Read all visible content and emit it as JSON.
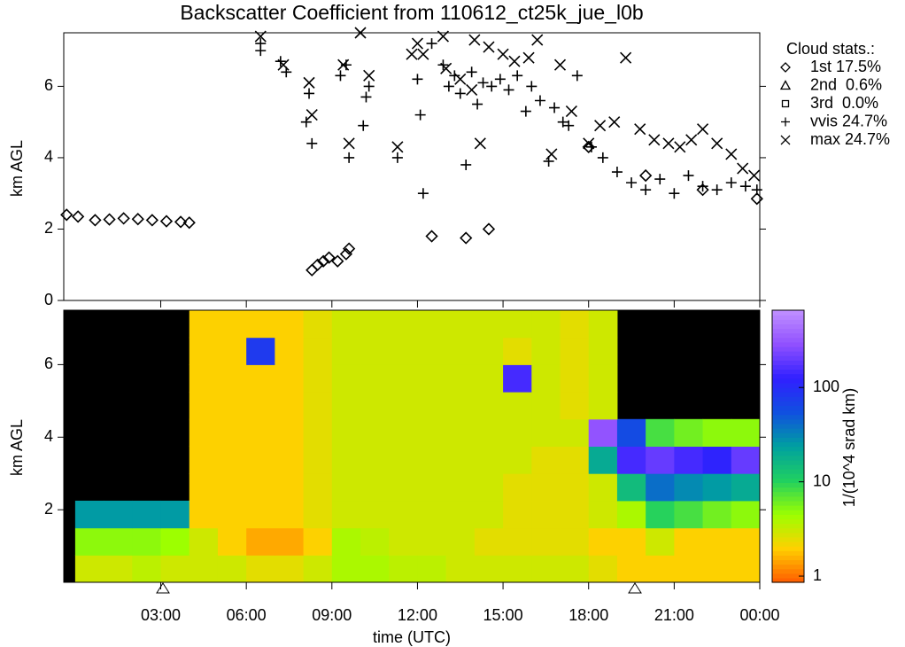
{
  "chart_data": [
    {
      "type": "scatter",
      "title": "Backscatter Coefficient from 110612_ct25k_jue_l0b",
      "ylabel": "km AGL",
      "xlim": [
        -0.4,
        24
      ],
      "ylim": [
        0,
        7.5
      ],
      "yticks": [
        0,
        2,
        4,
        6
      ],
      "legend_title": "Cloud stats.:",
      "series": [
        {
          "name": "1st 17.5%",
          "marker": "diamond",
          "color": "#000000",
          "x": [
            -0.3,
            0.1,
            0.7,
            1.2,
            1.7,
            2.2,
            2.7,
            3.2,
            3.7,
            4.0,
            8.3,
            8.5,
            8.7,
            8.9,
            9.2,
            9.5,
            9.6,
            12.5,
            13.7,
            14.5,
            18.0,
            20.0,
            22.0,
            23.9
          ],
          "values": [
            2.4,
            2.35,
            2.25,
            2.27,
            2.3,
            2.28,
            2.25,
            2.22,
            2.2,
            2.18,
            0.85,
            1.0,
            1.1,
            1.2,
            1.1,
            1.3,
            1.45,
            1.8,
            1.75,
            2.0,
            4.3,
            3.5,
            3.1,
            2.85
          ]
        },
        {
          "name": "2nd  0.6%",
          "marker": "triangle",
          "color": "#000000",
          "x": [],
          "values": []
        },
        {
          "name": "3rd  0.0%",
          "marker": "square",
          "color": "#000000",
          "x": [],
          "values": []
        },
        {
          "name": "vvis 24.7%",
          "marker": "plus",
          "color": "#000000",
          "x": [
            6.5,
            6.5,
            7.2,
            7.4,
            8.2,
            8.3,
            8.1,
            9.3,
            9.5,
            9.6,
            10.1,
            10.2,
            10.3,
            11.3,
            12.0,
            12.1,
            12.2,
            12.5,
            12.9,
            13.1,
            13.3,
            13.5,
            13.7,
            13.9,
            14.1,
            14.3,
            14.6,
            14.9,
            15.2,
            15.5,
            15.8,
            16.0,
            16.3,
            16.6,
            16.8,
            17.1,
            17.3,
            17.6,
            18.1,
            18.5,
            19.0,
            19.5,
            20.0,
            20.5,
            21.0,
            21.5,
            22.0,
            22.5,
            23.0,
            23.5,
            23.9
          ],
          "values": [
            7.0,
            7.2,
            6.7,
            6.4,
            5.8,
            4.4,
            5.0,
            6.3,
            6.6,
            4.0,
            4.9,
            5.7,
            6.0,
            4.0,
            6.2,
            5.2,
            3.0,
            7.2,
            6.6,
            6.0,
            6.3,
            5.8,
            3.8,
            6.4,
            5.5,
            6.1,
            6.0,
            6.2,
            5.9,
            6.3,
            5.3,
            6.0,
            5.6,
            3.9,
            5.4,
            5.0,
            4.9,
            6.3,
            4.3,
            4.0,
            3.6,
            3.3,
            3.1,
            3.4,
            3.0,
            3.5,
            3.2,
            3.1,
            3.3,
            3.2,
            3.1
          ]
        },
        {
          "name": "max 24.7%",
          "marker": "cross",
          "color": "#000000",
          "x": [
            6.5,
            7.3,
            8.2,
            8.3,
            9.4,
            9.6,
            10.0,
            10.3,
            11.3,
            11.8,
            12.0,
            12.2,
            12.9,
            13.0,
            13.5,
            13.9,
            14.0,
            14.2,
            14.5,
            15.0,
            15.4,
            15.9,
            16.2,
            16.7,
            17.0,
            17.4,
            18.0,
            18.4,
            18.9,
            19.3,
            19.8,
            20.3,
            20.8,
            21.2,
            21.6,
            22.0,
            22.5,
            23.0,
            23.4,
            23.8
          ],
          "values": [
            7.4,
            6.6,
            6.1,
            5.2,
            6.6,
            4.4,
            7.5,
            6.3,
            4.3,
            6.9,
            7.2,
            6.9,
            7.4,
            6.5,
            6.2,
            5.9,
            7.3,
            4.4,
            7.1,
            6.9,
            6.7,
            6.8,
            7.3,
            4.1,
            6.6,
            5.3,
            4.4,
            4.9,
            5.0,
            6.8,
            4.8,
            4.5,
            4.4,
            4.3,
            4.5,
            4.8,
            4.4,
            4.1,
            3.7,
            3.5
          ]
        }
      ]
    },
    {
      "type": "heatmap",
      "xlabel": "time (UTC)",
      "ylabel": "km AGL",
      "xlim": [
        -0.4,
        24
      ],
      "ylim": [
        0,
        7.5
      ],
      "yticks": [
        2,
        4,
        6
      ],
      "xticks": [
        {
          "value": 3,
          "label": "03:00"
        },
        {
          "value": 6,
          "label": "06:00"
        },
        {
          "value": 9,
          "label": "09:00"
        },
        {
          "value": 12,
          "label": "12:00"
        },
        {
          "value": 15,
          "label": "15:00"
        },
        {
          "value": 18,
          "label": "18:00"
        },
        {
          "value": 21,
          "label": "21:00"
        },
        {
          "value": 24,
          "label": "00:00"
        }
      ],
      "x_bins": [
        0,
        1,
        2,
        3,
        4,
        5,
        6,
        7,
        8,
        9,
        10,
        11,
        12,
        13,
        14,
        15,
        16,
        17,
        18,
        19,
        20,
        21,
        22,
        23,
        24
      ],
      "y_bins": [
        0,
        0.75,
        1.5,
        2.25,
        3,
        3.75,
        4.5,
        5.25,
        6,
        6.75,
        7.5
      ],
      "values": [
        [
          3,
          3,
          3.5,
          3,
          3,
          3,
          2.5,
          2.5,
          3,
          4,
          4,
          3.5,
          3.5,
          3,
          3,
          3,
          3,
          3,
          2.5,
          2,
          2,
          2,
          2,
          2
        ],
        [
          5,
          5,
          5,
          4.5,
          3,
          2,
          1.5,
          1.5,
          2,
          4,
          3.5,
          3,
          3,
          3,
          2.5,
          2.5,
          2.5,
          2.5,
          2,
          2,
          3,
          2,
          2,
          2
        ],
        [
          25,
          25,
          25,
          25,
          2,
          2,
          2,
          2,
          2.5,
          3,
          3,
          3,
          3,
          3,
          3,
          2.5,
          2.5,
          2.5,
          3,
          4,
          10,
          8,
          6,
          5
        ],
        [
          null,
          null,
          null,
          null,
          2,
          2,
          2,
          2,
          2.5,
          3,
          3,
          3,
          3,
          3,
          3,
          2.5,
          2.5,
          2.5,
          3,
          15,
          40,
          30,
          25,
          20
        ],
        [
          null,
          null,
          null,
          null,
          2,
          2,
          2,
          2,
          2.5,
          3,
          3,
          3,
          3,
          3,
          3,
          3,
          2.5,
          2.5,
          20,
          150,
          200,
          150,
          120,
          200
        ],
        [
          null,
          null,
          null,
          null,
          2,
          2,
          2,
          2,
          2.5,
          3,
          3,
          3,
          3,
          3,
          3,
          3,
          3,
          3,
          300,
          60,
          8,
          6,
          5,
          5
        ],
        [
          null,
          null,
          null,
          null,
          2,
          2,
          2,
          2,
          2.5,
          3,
          3,
          3,
          3,
          3,
          3,
          3,
          3,
          2.5,
          3,
          null,
          null,
          null,
          null,
          null
        ],
        [
          null,
          null,
          null,
          null,
          2,
          2,
          2,
          2,
          2.5,
          3,
          3,
          3,
          3,
          3,
          3,
          150,
          3,
          2.5,
          3,
          null,
          null,
          null,
          null,
          null
        ],
        [
          null,
          null,
          null,
          null,
          2,
          2,
          80,
          2,
          2.5,
          3,
          3,
          3,
          3,
          3,
          3,
          2.5,
          3,
          2.5,
          3,
          null,
          null,
          null,
          null,
          null
        ],
        [
          null,
          null,
          null,
          null,
          2,
          2,
          2,
          2,
          2.5,
          3,
          3,
          3,
          3,
          3,
          3,
          3,
          3,
          2.5,
          3,
          null,
          null,
          null,
          null,
          null
        ]
      ],
      "colorbar": {
        "label": "1/(10^4 srad km)",
        "log": true,
        "lim": [
          0.86,
          660
        ],
        "ticks": [
          1,
          10,
          100
        ],
        "colors": [
          "#ff5a00",
          "#ffd000",
          "#9cff00",
          "#20d060",
          "#00a0a0",
          "#1050e0",
          "#3020ff",
          "#9050ff",
          "#c090ff"
        ]
      }
    }
  ]
}
